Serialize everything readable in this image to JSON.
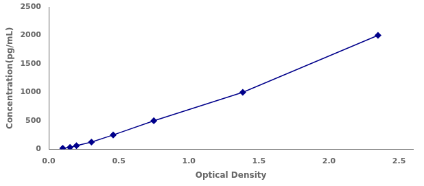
{
  "chart_data": {
    "type": "line",
    "x": [
      0.1,
      0.152,
      0.198,
      0.305,
      0.46,
      0.75,
      1.385,
      2.35
    ],
    "values": [
      15.6,
      31.2,
      62.5,
      125,
      250,
      500,
      1000,
      2000
    ],
    "xlabel": "Optical Density",
    "ylabel": "Concentration(pg/mL)",
    "xlim": [
      0,
      2.6
    ],
    "ylim": [
      0,
      2500
    ],
    "xticks": [
      {
        "value": 0,
        "label": "0.0"
      },
      0.5,
      {
        "value": 1,
        "label": "1.0"
      },
      1.5,
      {
        "value": 2,
        "label": "2.0"
      },
      2.5
    ],
    "yticks": [
      0,
      500,
      1000,
      1500,
      2000,
      2500
    ],
    "color": "#00008B",
    "marker": "diamond",
    "line_style": "solid",
    "grid": false
  }
}
